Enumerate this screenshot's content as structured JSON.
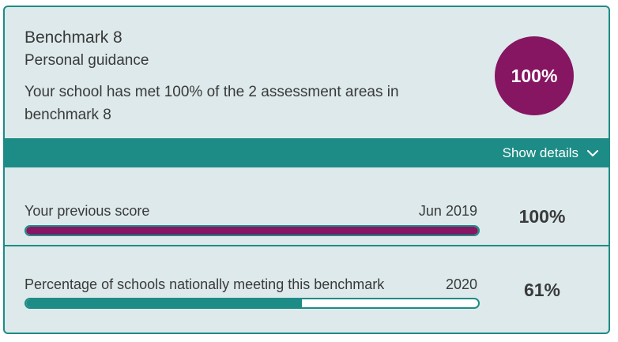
{
  "benchmark": {
    "title": "Benchmark 8",
    "subtitle": "Personal guidance",
    "description": "Your school has met 100% of the 2 assessment areas in benchmark 8",
    "score": "100%"
  },
  "details": {
    "toggle_label": "Show details",
    "icon": "chevron-down-icon"
  },
  "rows": [
    {
      "label": "Your previous score",
      "date": "Jun 2019",
      "value": "100%",
      "progress": 1.0
    },
    {
      "label": "Percentage of schools nationally meeting this benchmark",
      "date": "2020",
      "value": "61%",
      "progress": 0.61
    }
  ],
  "colors": {
    "accent_teal": "#1e8c86",
    "accent_plum": "#861562",
    "card_background": "#dde9ea"
  }
}
